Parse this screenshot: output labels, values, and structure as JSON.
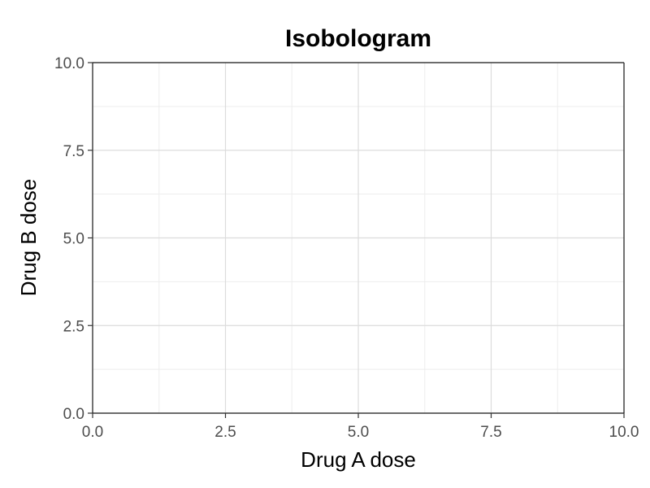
{
  "chart_data": {
    "type": "line",
    "title": "Isobologram",
    "xlabel": "Drug A dose",
    "ylabel": "Drug B dose",
    "xlim": [
      0,
      10
    ],
    "ylim": [
      0,
      10
    ],
    "x_ticks": [
      0,
      2.5,
      5,
      7.5,
      10
    ],
    "y_ticks": [
      0,
      2.5,
      5,
      7.5,
      10
    ],
    "x_tick_labels": [
      "0.0",
      "2.5",
      "5.0",
      "7.5",
      "10.0"
    ],
    "y_tick_labels": [
      "0.0",
      "2.5",
      "5.0",
      "7.5",
      "10.0"
    ],
    "grid": true,
    "series": []
  }
}
